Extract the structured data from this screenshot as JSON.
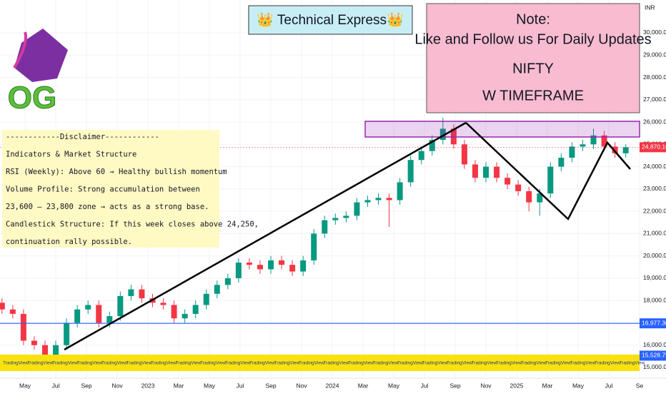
{
  "header": {
    "title": "👑 Technical Express👑"
  },
  "note": {
    "lines": [
      "Note:",
      "Like and Follow us For Daily Updates",
      "NIFTY",
      "W TIMEFRAME"
    ]
  },
  "disclaimer": {
    "lines": [
      "------------Disclaimer------------",
      "Indicators & Market Structure",
      "RSI (Weekly): Above 60 → Healthy bullish momentum",
      "Volume Profile: Strong accumulation between",
      "23,600 – 23,800 zone → acts as a strong base.",
      "Candlestick Structure: If this week closes above 24,250,",
      "continuation rally possible."
    ]
  },
  "logo": {
    "text": "OG"
  },
  "banner": {
    "text": "TradingView"
  },
  "chart_data": {
    "type": "candlestick",
    "currency": "INR",
    "x": [
      2.5,
      3.2,
      3.9,
      4.6,
      5.3,
      6,
      6.7,
      7.4,
      8.1,
      8.8,
      9.5,
      10.2,
      10.9,
      11.6,
      12.3,
      13,
      13.7,
      14.4,
      15.1,
      15.8,
      16.5,
      17.2,
      17.9,
      18.6,
      19.3,
      20,
      20.7,
      21.4,
      22.1,
      22.8,
      23.5,
      24.2,
      24.9,
      25.6,
      26.3,
      27,
      27.7,
      28.4,
      29.1,
      29.8,
      30.5,
      31.2,
      31.9,
      32.6,
      33.3,
      34,
      34.7,
      35.4,
      36.1,
      36.8,
      37.5,
      38.2,
      38.9,
      39.6,
      40.3,
      41,
      41.7,
      42.4,
      43.1
    ],
    "open": [
      17900,
      17600,
      17400,
      16200,
      16000,
      15400,
      16000,
      17000,
      17600,
      17800,
      17000,
      17300,
      18200,
      18500,
      18100,
      17900,
      17800,
      17200,
      17400,
      17800,
      18300,
      18700,
      19000,
      19700,
      19600,
      19400,
      19800,
      19600,
      19300,
      19800,
      21000,
      21600,
      21700,
      21800,
      22400,
      22500,
      22600,
      22500,
      23300,
      24300,
      24700,
      25200,
      25700,
      25000,
      24100,
      23500,
      24000,
      23500,
      23200,
      22900,
      22400,
      22800,
      24000,
      24400,
      24900,
      25000,
      25400,
      24900,
      24600
    ],
    "high": [
      18100,
      17800,
      17600,
      16400,
      16200,
      16200,
      17200,
      17800,
      18000,
      18000,
      17500,
      18400,
      18700,
      18700,
      18300,
      18100,
      18000,
      17600,
      18000,
      18500,
      18900,
      19200,
      19900,
      19900,
      19800,
      20000,
      20000,
      19800,
      20000,
      21200,
      21800,
      21900,
      22000,
      22600,
      22700,
      22800,
      22800,
      23500,
      24500,
      24900,
      25400,
      26200,
      25900,
      25200,
      24300,
      24200,
      24200,
      23700,
      23400,
      23100,
      23000,
      24200,
      24600,
      25100,
      25200,
      25700,
      25600,
      25100,
      25000
    ],
    "low": [
      17400,
      17200,
      16000,
      15800,
      15200,
      15200,
      15800,
      16800,
      17400,
      16800,
      16800,
      17100,
      18000,
      17900,
      17700,
      17600,
      17000,
      17000,
      17200,
      17600,
      18100,
      18500,
      18800,
      19400,
      19200,
      19200,
      19400,
      19100,
      19100,
      19600,
      20800,
      21400,
      21500,
      21600,
      22200,
      22300,
      21300,
      22300,
      23100,
      24100,
      24500,
      25000,
      24800,
      23900,
      23300,
      23300,
      23300,
      23000,
      22700,
      22000,
      21800,
      22600,
      23800,
      24200,
      24700,
      24800,
      24700,
      24400,
      24400
    ],
    "close": [
      17600,
      17400,
      16200,
      16000,
      15400,
      16000,
      17000,
      17600,
      17800,
      17000,
      17300,
      18200,
      18500,
      18100,
      17900,
      17800,
      17200,
      17400,
      17800,
      18300,
      18700,
      19000,
      19700,
      19600,
      19400,
      19800,
      19600,
      19300,
      19800,
      21000,
      21600,
      21700,
      21800,
      22400,
      22500,
      22600,
      22500,
      23300,
      24300,
      24700,
      25200,
      25700,
      25000,
      24100,
      23500,
      24000,
      23500,
      23200,
      22900,
      22400,
      22800,
      24000,
      24400,
      24900,
      25000,
      25400,
      24900,
      24600,
      24870
    ],
    "up_color": "#089981",
    "down_color": "#f23645",
    "xlim": [
      2.37,
      44
    ],
    "ylim": [
      14520,
      31470
    ],
    "xticks": [
      {
        "value": 4,
        "label": "May"
      },
      {
        "value": 6,
        "label": "Jul"
      },
      {
        "value": 8,
        "label": "Sep"
      },
      {
        "value": 10,
        "label": "Nov"
      },
      {
        "value": 12,
        "label": "2023"
      },
      {
        "value": 14,
        "label": "Mar"
      },
      {
        "value": 16,
        "label": "May"
      },
      {
        "value": 18,
        "label": "Jul"
      },
      {
        "value": 20,
        "label": "Sep"
      },
      {
        "value": 22,
        "label": "Nov"
      },
      {
        "value": 24,
        "label": "2024"
      },
      {
        "value": 26,
        "label": "Mar"
      },
      {
        "value": 28,
        "label": "May"
      },
      {
        "value": 30,
        "label": "Jul"
      },
      {
        "value": 32,
        "label": "Sep"
      },
      {
        "value": 34,
        "label": "Nov"
      },
      {
        "value": 36,
        "label": "2025"
      },
      {
        "value": 38,
        "label": "Mar"
      },
      {
        "value": 40,
        "label": "May"
      },
      {
        "value": 42,
        "label": "Jul"
      },
      {
        "value": 44,
        "label": "Se"
      }
    ],
    "yticks": [
      {
        "value": 15000,
        "label": "15,000.00"
      },
      {
        "value": 16000,
        "label": "16,000.00"
      },
      {
        "value": 17000,
        "label": "17,000.00"
      },
      {
        "value": 18000,
        "label": "18,000.00"
      },
      {
        "value": 19000,
        "label": "19,000.00"
      },
      {
        "value": 20000,
        "label": "20,000.00"
      },
      {
        "value": 21000,
        "label": "21,000.00"
      },
      {
        "value": 22000,
        "label": "22,000.00"
      },
      {
        "value": 23000,
        "label": "23,000.00"
      },
      {
        "value": 24000,
        "label": "24,000.00"
      },
      {
        "value": 25000,
        "label": "25,000.00"
      },
      {
        "value": 26000,
        "label": "26,000.00"
      },
      {
        "value": 27000,
        "label": "27,000.00"
      },
      {
        "value": 28000,
        "label": "28,000.00"
      },
      {
        "value": 29000,
        "label": "29,000.00"
      },
      {
        "value": 30000,
        "label": "30,000.00"
      }
    ],
    "levels": [
      {
        "value": 24870.1,
        "label": "24,870.10",
        "color": "#f23645"
      },
      {
        "value": 16977.3,
        "label": "16,977.30",
        "color": "#2962ff"
      },
      {
        "value": 15528.75,
        "label": "15,528.75",
        "color": "#2962ff"
      }
    ]
  }
}
